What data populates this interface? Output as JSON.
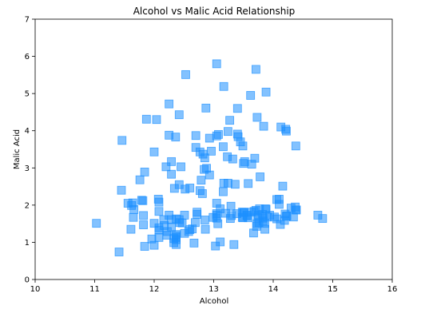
{
  "chart_data": {
    "type": "scatter",
    "title": "Alcohol vs Malic Acid Relationship",
    "xlabel": "Alcohol",
    "ylabel": "Malic Acid",
    "xlim": [
      10,
      16
    ],
    "ylim": [
      0,
      7
    ],
    "xticks": [
      "10",
      "11",
      "12",
      "13",
      "14",
      "15",
      "16"
    ],
    "yticks": [
      "0",
      "1",
      "2",
      "3",
      "4",
      "5",
      "6",
      "7"
    ],
    "grid": false,
    "legend": "none",
    "marker": "square",
    "color": "#1e90ff",
    "alpha": 0.55,
    "x": [
      14.23,
      13.2,
      13.16,
      14.37,
      13.24,
      14.2,
      14.39,
      14.06,
      14.83,
      13.86,
      14.1,
      14.12,
      13.75,
      14.75,
      14.38,
      13.63,
      14.3,
      13.83,
      14.19,
      13.64,
      14.06,
      12.93,
      13.71,
      12.85,
      13.5,
      13.05,
      13.39,
      13.3,
      13.87,
      14.02,
      13.73,
      13.58,
      13.68,
      13.76,
      13.51,
      13.48,
      13.28,
      13.05,
      13.07,
      14.22,
      13.56,
      13.41,
      13.88,
      13.24,
      13.05,
      14.21,
      14.38,
      13.9,
      14.1,
      13.94,
      13.05,
      13.83,
      13.82,
      13.77,
      13.74,
      13.56,
      14.22,
      13.29,
      13.72,
      12.37,
      12.33,
      12.64,
      13.67,
      12.37,
      12.17,
      12.37,
      13.11,
      12.37,
      13.34,
      12.21,
      12.29,
      13.86,
      13.49,
      12.99,
      11.96,
      11.66,
      13.03,
      11.84,
      12.33,
      12.7,
      12.0,
      12.72,
      12.08,
      13.05,
      11.84,
      12.67,
      12.16,
      11.65,
      11.64,
      12.08,
      12.08,
      12.0,
      12.69,
      12.29,
      11.62,
      12.47,
      11.81,
      12.29,
      12.37,
      12.29,
      12.08,
      12.6,
      12.34,
      11.82,
      12.51,
      12.42,
      12.25,
      12.72,
      12.22,
      11.61,
      11.46,
      12.52,
      11.76,
      11.41,
      12.08,
      11.03,
      11.82,
      12.42,
      12.77,
      12.0,
      11.45,
      11.56,
      12.42,
      13.05,
      11.87,
      12.07,
      12.43,
      11.79,
      12.37,
      12.04,
      12.86,
      12.88,
      12.81,
      12.7,
      12.51,
      12.6,
      12.25,
      12.53,
      13.49,
      12.84,
      12.93,
      13.36,
      13.52,
      13.62,
      12.25,
      13.16,
      13.88,
      12.87,
      13.32,
      13.08,
      13.5,
      12.79,
      13.11,
      13.23,
      12.58,
      13.17,
      13.84,
      12.45,
      14.34,
      13.48,
      12.36,
      13.69,
      12.85,
      12.96,
      13.78,
      13.73,
      13.45,
      12.82,
      13.58,
      13.4,
      12.2,
      12.77,
      14.16,
      13.71,
      13.4,
      13.27,
      13.17,
      14.13
    ],
    "y": [
      1.71,
      1.78,
      2.36,
      1.95,
      2.59,
      1.76,
      1.87,
      2.15,
      1.64,
      1.35,
      2.16,
      1.48,
      1.73,
      1.73,
      1.87,
      1.81,
      1.92,
      1.57,
      1.59,
      3.1,
      1.63,
      3.8,
      1.86,
      1.6,
      1.81,
      2.05,
      1.77,
      1.72,
      1.9,
      1.68,
      1.5,
      1.66,
      1.83,
      1.53,
      1.8,
      1.81,
      1.64,
      1.65,
      1.5,
      3.99,
      1.71,
      3.84,
      1.89,
      3.98,
      1.77,
      4.04,
      3.59,
      1.68,
      2.02,
      1.73,
      1.73,
      1.65,
      1.75,
      1.9,
      1.67,
      1.73,
      1.7,
      1.97,
      1.43,
      0.94,
      1.1,
      1.36,
      1.25,
      1.13,
      1.45,
      1.21,
      1.01,
      1.17,
      0.94,
      1.19,
      1.61,
      1.51,
      1.66,
      1.67,
      1.09,
      1.88,
      0.9,
      2.89,
      0.99,
      3.87,
      0.92,
      1.81,
      1.13,
      3.86,
      0.89,
      0.98,
      1.61,
      1.67,
      2.06,
      1.33,
      1.83,
      1.51,
      1.53,
      2.83,
      1.99,
      1.52,
      2.12,
      1.41,
      1.07,
      3.17,
      2.08,
      1.34,
      2.45,
      1.72,
      1.73,
      2.55,
      1.73,
      1.75,
      1.29,
      1.35,
      3.74,
      2.43,
      2.68,
      0.74,
      1.39,
      1.51,
      1.47,
      1.61,
      3.43,
      3.43,
      2.4,
      2.05,
      4.43,
      5.8,
      4.31,
      2.16,
      1.53,
      2.13,
      1.63,
      4.3,
      1.35,
      2.99,
      2.31,
      3.55,
      1.24,
      2.46,
      4.72,
      5.51,
      3.59,
      2.96,
      2.81,
      2.56,
      3.17,
      4.95,
      3.88,
      3.57,
      5.04,
      4.61,
      3.24,
      3.9,
      3.12,
      2.67,
      1.9,
      3.3,
      1.29,
      5.19,
      4.12,
      3.03,
      1.68,
      1.67,
      3.83,
      3.26,
      3.27,
      3.45,
      2.76,
      4.36,
      3.7,
      3.37,
      2.58,
      4.6,
      3.03,
      2.39,
      2.51,
      5.65,
      3.91,
      4.28,
      2.59,
      4.1
    ]
  }
}
